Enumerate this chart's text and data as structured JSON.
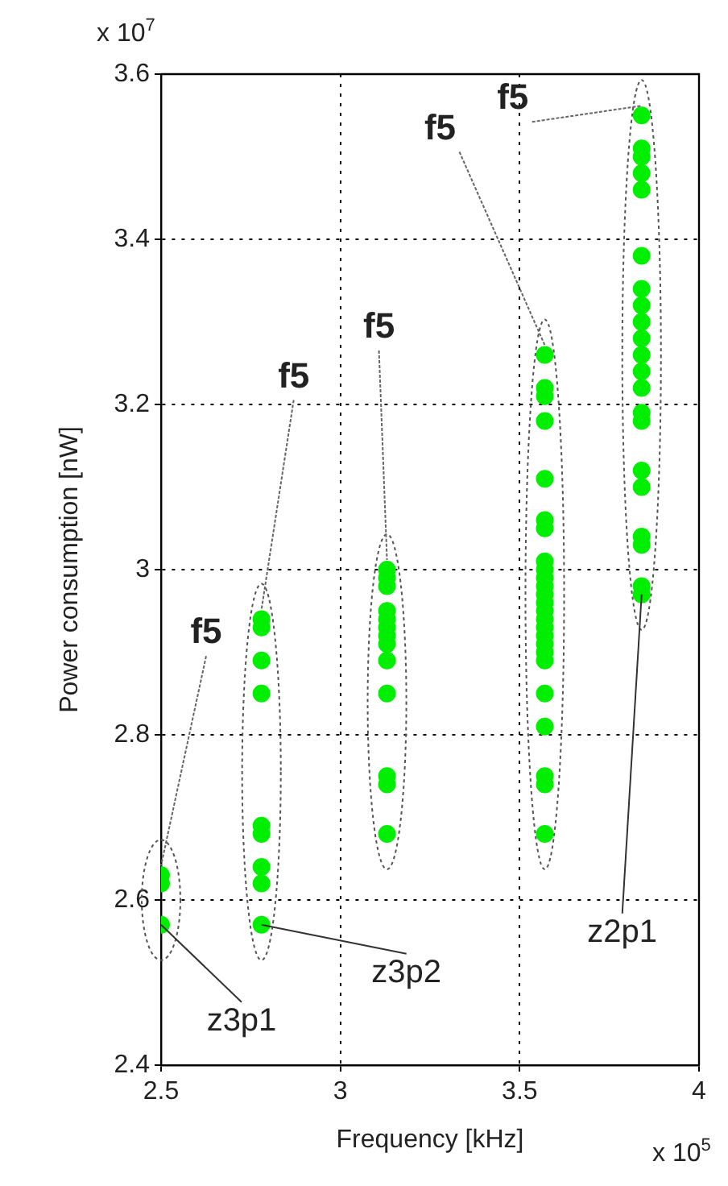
{
  "chart_data": {
    "type": "scatter",
    "xlabel": "Frequency [kHz]",
    "ylabel": "Power consumption [nW]",
    "xlim": [
      2.5,
      4
    ],
    "xticks": [
      2.5,
      3,
      3.5,
      4
    ],
    "ylim": [
      2.4,
      3.6
    ],
    "yticks": [
      2.4,
      2.6,
      2.8,
      3,
      3.2,
      3.4,
      3.6
    ],
    "grid": true,
    "legend": false,
    "marker": "circle",
    "series": [
      {
        "color": "#00ee00",
        "x": [
          2.5,
          2.5,
          2.5
        ],
        "values": [
          2.63,
          2.62,
          2.57
        ]
      },
      {
        "color": "#00ee00",
        "x": [
          2.78,
          2.78,
          2.78,
          2.78,
          2.78,
          2.78,
          2.78,
          2.78,
          2.78
        ],
        "values": [
          2.94,
          2.93,
          2.89,
          2.85,
          2.69,
          2.68,
          2.64,
          2.62,
          2.57
        ]
      },
      {
        "color": "#00ee00",
        "x": [
          3.13,
          3.13,
          3.13,
          3.13,
          3.13,
          3.13,
          3.13,
          3.13,
          3.13,
          3.13,
          3.13,
          3.13,
          3.13
        ],
        "values": [
          3.0,
          2.99,
          2.98,
          2.95,
          2.94,
          2.93,
          2.92,
          2.91,
          2.89,
          2.85,
          2.75,
          2.74,
          2.68
        ]
      },
      {
        "color": "#00ee00",
        "x": [
          3.57,
          3.57,
          3.57,
          3.57,
          3.57,
          3.57,
          3.57,
          3.57,
          3.57,
          3.57,
          3.57,
          3.57,
          3.57,
          3.57,
          3.57,
          3.57,
          3.57,
          3.57,
          3.57,
          3.57,
          3.57,
          3.57,
          3.57,
          3.57,
          3.57
        ],
        "values": [
          3.26,
          3.22,
          3.21,
          3.18,
          3.11,
          3.06,
          3.05,
          3.01,
          3.0,
          2.99,
          2.98,
          2.97,
          2.96,
          2.95,
          2.94,
          2.93,
          2.92,
          2.91,
          2.9,
          2.89,
          2.85,
          2.81,
          2.75,
          2.74,
          2.68
        ]
      },
      {
        "color": "#00ee00",
        "x": [
          3.84,
          3.84,
          3.84,
          3.84,
          3.84,
          3.84,
          3.84,
          3.84,
          3.84,
          3.84,
          3.84,
          3.84,
          3.84,
          3.84,
          3.84,
          3.84,
          3.84,
          3.84,
          3.84,
          3.84,
          3.84
        ],
        "values": [
          3.55,
          3.51,
          3.5,
          3.48,
          3.46,
          3.38,
          3.34,
          3.32,
          3.3,
          3.28,
          3.26,
          3.24,
          3.22,
          3.19,
          3.18,
          3.12,
          3.1,
          3.04,
          3.03,
          2.98,
          2.97
        ]
      }
    ],
    "annotations": [
      "x 10$^{7}$",
      "x 10$^{5}$",
      {
        "text": "f5",
        "x": 2.5,
        "y": 2.63
      },
      {
        "text": "f5",
        "x": 2.78,
        "y": 2.94
      },
      {
        "text": "f5",
        "x": 3.13,
        "y": 3.0
      },
      {
        "text": "f5",
        "x": 3.57,
        "y": 3.26
      },
      {
        "text": "f5",
        "x": 3.84,
        "y": 3.55
      },
      {
        "text": "z3p1",
        "x": 2.5,
        "y": 2.57
      },
      {
        "text": "z3p2",
        "x": 2.78,
        "y": 2.57
      },
      {
        "text": "z2p1",
        "x": 3.84,
        "y": 2.97
      }
    ]
  }
}
